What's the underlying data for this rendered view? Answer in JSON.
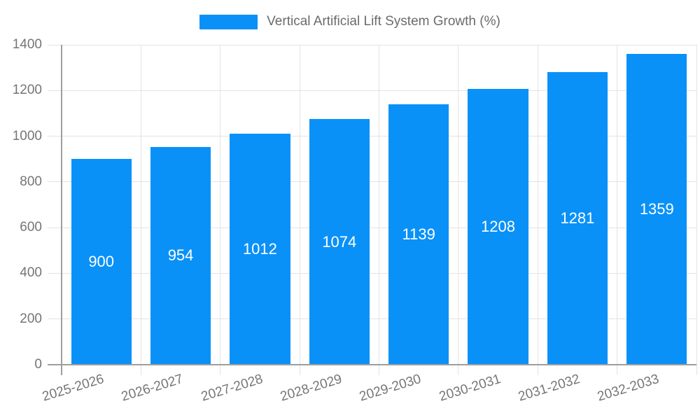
{
  "chart_data": {
    "type": "bar",
    "title": "Vertical Artificial Lift System Growth (%)",
    "categories": [
      "2025-2026",
      "2026-2027",
      "2027-2028",
      "2028-2029",
      "2029-2030",
      "2030-2031",
      "2031-2032",
      "2032-2033"
    ],
    "values": [
      900,
      954,
      1012,
      1074,
      1139,
      1208,
      1281,
      1359
    ],
    "xlabel": "",
    "ylabel": "",
    "ylim": [
      0,
      1400
    ],
    "yticks": [
      0,
      200,
      400,
      600,
      800,
      1000,
      1200,
      1400
    ],
    "grid": true,
    "legend_position": "top-center",
    "value_labels_inside_bars": true,
    "colors": {
      "bar": "#0991f8",
      "value_label": "#ffffff",
      "axis_line": "#9e9e9e",
      "gridline": "#e3e3e3",
      "tick_text": "#757575",
      "legend_text": "#6b6b6b",
      "background": "#ffffff"
    }
  }
}
